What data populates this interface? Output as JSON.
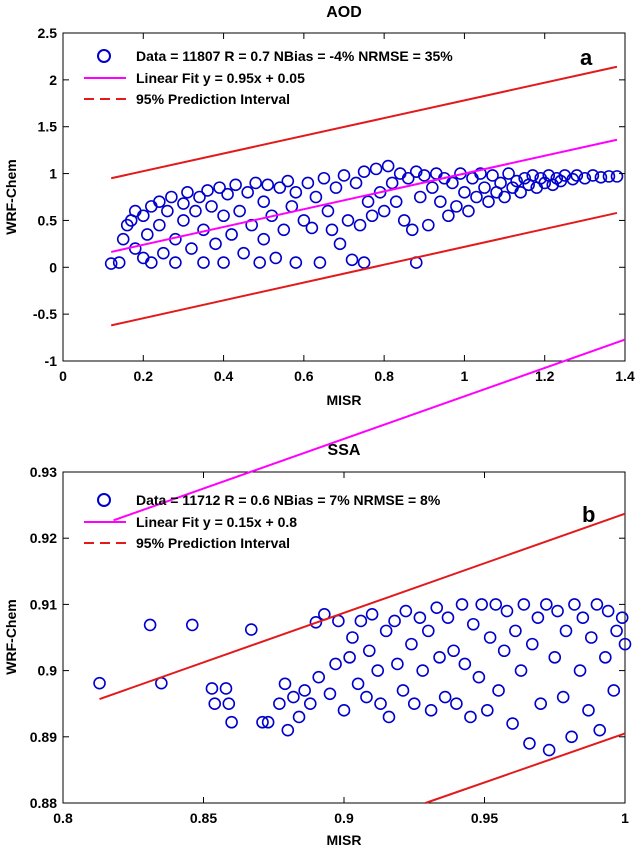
{
  "chart_data": [
    {
      "type": "scatter",
      "title": "AOD",
      "xlabel": "MISR",
      "ylabel": "WRF-Chem",
      "xlim": [
        0,
        1.4
      ],
      "ylim": [
        -1,
        2.5
      ],
      "xticks": [
        "0",
        "0.2",
        "0.4",
        "0.6",
        "0.8",
        "1",
        "1.2",
        "1.4"
      ],
      "yticks": [
        "-1",
        "-0.5",
        "0",
        "0.5",
        "1",
        "1.5",
        "2",
        "2.5"
      ],
      "panel_label": "a",
      "legend": {
        "placement": "top",
        "entries": [
          {
            "marker": "circle",
            "text": "Data = 11807   R = 0.7  NBias = -4%   NRMSE = 35%"
          },
          {
            "marker": "solid-line",
            "text": "Linear Fit    y = 0.95x + 0.05"
          },
          {
            "marker": "dashed-line",
            "text": "95% Prediction Interval"
          }
        ]
      },
      "fit": {
        "slope": 0.95,
        "intercept": 0.05,
        "x_range": [
          0.12,
          1.38
        ]
      },
      "prediction_interval": {
        "upper": [
          [
            0.12,
            0.95
          ],
          [
            1.38,
            2.14
          ]
        ],
        "lower": [
          [
            0.12,
            -0.62
          ],
          [
            1.38,
            0.58
          ]
        ]
      },
      "series": [
        {
          "name": "Data",
          "color": "#0000cc",
          "points": [
            [
              0.12,
              0.04
            ],
            [
              0.14,
              0.05
            ],
            [
              0.15,
              0.3
            ],
            [
              0.16,
              0.45
            ],
            [
              0.17,
              0.5
            ],
            [
              0.18,
              0.2
            ],
            [
              0.18,
              0.6
            ],
            [
              0.2,
              0.1
            ],
            [
              0.2,
              0.55
            ],
            [
              0.21,
              0.35
            ],
            [
              0.22,
              0.65
            ],
            [
              0.22,
              0.05
            ],
            [
              0.24,
              0.7
            ],
            [
              0.24,
              0.45
            ],
            [
              0.25,
              0.15
            ],
            [
              0.26,
              0.6
            ],
            [
              0.27,
              0.75
            ],
            [
              0.28,
              0.3
            ],
            [
              0.28,
              0.05
            ],
            [
              0.3,
              0.68
            ],
            [
              0.3,
              0.5
            ],
            [
              0.31,
              0.8
            ],
            [
              0.32,
              0.2
            ],
            [
              0.33,
              0.6
            ],
            [
              0.34,
              0.75
            ],
            [
              0.35,
              0.05
            ],
            [
              0.35,
              0.4
            ],
            [
              0.36,
              0.82
            ],
            [
              0.37,
              0.65
            ],
            [
              0.38,
              0.25
            ],
            [
              0.39,
              0.85
            ],
            [
              0.4,
              0.55
            ],
            [
              0.4,
              0.05
            ],
            [
              0.41,
              0.78
            ],
            [
              0.42,
              0.35
            ],
            [
              0.43,
              0.88
            ],
            [
              0.44,
              0.6
            ],
            [
              0.45,
              0.15
            ],
            [
              0.46,
              0.8
            ],
            [
              0.47,
              0.45
            ],
            [
              0.48,
              0.9
            ],
            [
              0.49,
              0.05
            ],
            [
              0.5,
              0.7
            ],
            [
              0.5,
              0.3
            ],
            [
              0.51,
              0.88
            ],
            [
              0.52,
              0.55
            ],
            [
              0.53,
              0.1
            ],
            [
              0.54,
              0.85
            ],
            [
              0.55,
              0.4
            ],
            [
              0.56,
              0.92
            ],
            [
              0.57,
              0.65
            ],
            [
              0.58,
              0.05
            ],
            [
              0.58,
              0.8
            ],
            [
              0.6,
              0.5
            ],
            [
              0.61,
              0.9
            ],
            [
              0.62,
              0.42
            ],
            [
              0.63,
              0.75
            ],
            [
              0.64,
              0.05
            ],
            [
              0.65,
              0.95
            ],
            [
              0.66,
              0.6
            ],
            [
              0.67,
              0.4
            ],
            [
              0.68,
              0.85
            ],
            [
              0.69,
              0.25
            ],
            [
              0.7,
              0.98
            ],
            [
              0.71,
              0.5
            ],
            [
              0.72,
              0.08
            ],
            [
              0.73,
              0.9
            ],
            [
              0.74,
              0.45
            ],
            [
              0.75,
              1.02
            ],
            [
              0.75,
              0.05
            ],
            [
              0.76,
              0.7
            ],
            [
              0.77,
              0.55
            ],
            [
              0.78,
              1.05
            ],
            [
              0.79,
              0.8
            ],
            [
              0.8,
              0.6
            ],
            [
              0.81,
              1.08
            ],
            [
              0.82,
              0.9
            ],
            [
              0.83,
              0.7
            ],
            [
              0.84,
              1.0
            ],
            [
              0.85,
              0.5
            ],
            [
              0.86,
              0.95
            ],
            [
              0.87,
              0.4
            ],
            [
              0.88,
              0.05
            ],
            [
              0.88,
              1.02
            ],
            [
              0.89,
              0.75
            ],
            [
              0.9,
              0.98
            ],
            [
              0.91,
              0.45
            ],
            [
              0.92,
              0.85
            ],
            [
              0.93,
              1.0
            ],
            [
              0.94,
              0.7
            ],
            [
              0.95,
              0.95
            ],
            [
              0.96,
              0.55
            ],
            [
              0.97,
              0.9
            ],
            [
              0.98,
              0.65
            ],
            [
              0.99,
              1.0
            ],
            [
              1.0,
              0.8
            ],
            [
              1.01,
              0.6
            ],
            [
              1.02,
              0.95
            ],
            [
              1.03,
              0.75
            ],
            [
              1.04,
              1.0
            ],
            [
              1.05,
              0.85
            ],
            [
              1.06,
              0.7
            ],
            [
              1.07,
              0.98
            ],
            [
              1.08,
              0.8
            ],
            [
              1.09,
              0.9
            ],
            [
              1.1,
              0.75
            ],
            [
              1.11,
              1.0
            ],
            [
              1.12,
              0.85
            ],
            [
              1.13,
              0.92
            ],
            [
              1.14,
              0.8
            ],
            [
              1.15,
              0.95
            ],
            [
              1.16,
              0.88
            ],
            [
              1.17,
              0.98
            ],
            [
              1.18,
              0.85
            ],
            [
              1.19,
              0.95
            ],
            [
              1.2,
              0.9
            ],
            [
              1.21,
              0.98
            ],
            [
              1.22,
              0.88
            ],
            [
              1.23,
              0.95
            ],
            [
              1.24,
              0.92
            ],
            [
              1.25,
              0.98
            ],
            [
              1.27,
              0.94
            ],
            [
              1.28,
              0.98
            ],
            [
              1.3,
              0.95
            ],
            [
              1.32,
              0.98
            ],
            [
              1.34,
              0.96
            ],
            [
              1.36,
              0.97
            ],
            [
              1.38,
              0.97
            ]
          ]
        }
      ]
    },
    {
      "type": "scatter",
      "title": "SSA",
      "xlabel": "MISR",
      "ylabel": "WRF-Chem",
      "xlim": [
        0.8,
        1.0
      ],
      "ylim": [
        0.88,
        0.93
      ],
      "xticks": [
        "0.8",
        "0.85",
        "0.9",
        "0.95",
        "1"
      ],
      "yticks": [
        "0.88",
        "0.89",
        "0.9",
        "0.91",
        "0.92",
        "0.93"
      ],
      "panel_label": "b",
      "legend": {
        "placement": "top",
        "entries": [
          {
            "marker": "circle",
            "text": "Data = 11712   R = 0.6   NBias = 7%   NRMSE = 8%"
          },
          {
            "marker": "solid-line",
            "text": "Linear Fit    y = 0.15x + 0.8"
          },
          {
            "marker": "dashed-line",
            "text": "95% Prediction Interval"
          }
        ]
      },
      "fit": {
        "slope": 0.15,
        "intercept": 0.8,
        "x_range": [
          0.818,
          1.0
        ]
      },
      "prediction_interval": {
        "upper": [
          [
            0.813,
            0.8957
          ],
          [
            1.0,
            0.9237
          ]
        ],
        "lower": [
          [
            0.929,
            0.88
          ],
          [
            1.0,
            0.8905
          ]
        ]
      },
      "series": [
        {
          "name": "Data",
          "color": "#0000cc",
          "points": [
            [
              0.813,
              0.8981
            ],
            [
              0.831,
              0.9069
            ],
            [
              0.835,
              0.8981
            ],
            [
              0.846,
              0.9069
            ],
            [
              0.853,
              0.8973
            ],
            [
              0.854,
              0.895
            ],
            [
              0.858,
              0.8973
            ],
            [
              0.859,
              0.895
            ],
            [
              0.86,
              0.8922
            ],
            [
              0.867,
              0.9062
            ],
            [
              0.871,
              0.8922
            ],
            [
              0.873,
              0.8922
            ],
            [
              0.877,
              0.895
            ],
            [
              0.879,
              0.898
            ],
            [
              0.88,
              0.891
            ],
            [
              0.882,
              0.896
            ],
            [
              0.884,
              0.893
            ],
            [
              0.886,
              0.897
            ],
            [
              0.888,
              0.895
            ],
            [
              0.89,
              0.9073
            ],
            [
              0.891,
              0.899
            ],
            [
              0.893,
              0.9085
            ],
            [
              0.895,
              0.8965
            ],
            [
              0.897,
              0.901
            ],
            [
              0.898,
              0.9075
            ],
            [
              0.9,
              0.894
            ],
            [
              0.902,
              0.902
            ],
            [
              0.903,
              0.905
            ],
            [
              0.905,
              0.898
            ],
            [
              0.906,
              0.9075
            ],
            [
              0.908,
              0.896
            ],
            [
              0.909,
              0.903
            ],
            [
              0.91,
              0.9085
            ],
            [
              0.912,
              0.9
            ],
            [
              0.913,
              0.895
            ],
            [
              0.915,
              0.906
            ],
            [
              0.916,
              0.893
            ],
            [
              0.918,
              0.9075
            ],
            [
              0.919,
              0.901
            ],
            [
              0.921,
              0.897
            ],
            [
              0.922,
              0.909
            ],
            [
              0.924,
              0.904
            ],
            [
              0.925,
              0.895
            ],
            [
              0.927,
              0.908
            ],
            [
              0.928,
              0.9
            ],
            [
              0.93,
              0.906
            ],
            [
              0.931,
              0.894
            ],
            [
              0.933,
              0.9095
            ],
            [
              0.934,
              0.902
            ],
            [
              0.936,
              0.896
            ],
            [
              0.937,
              0.908
            ],
            [
              0.939,
              0.903
            ],
            [
              0.94,
              0.895
            ],
            [
              0.942,
              0.91
            ],
            [
              0.943,
              0.901
            ],
            [
              0.945,
              0.893
            ],
            [
              0.946,
              0.907
            ],
            [
              0.948,
              0.899
            ],
            [
              0.949,
              0.91
            ],
            [
              0.951,
              0.894
            ],
            [
              0.952,
              0.905
            ],
            [
              0.954,
              0.91
            ],
            [
              0.955,
              0.897
            ],
            [
              0.957,
              0.903
            ],
            [
              0.958,
              0.909
            ],
            [
              0.96,
              0.892
            ],
            [
              0.961,
              0.906
            ],
            [
              0.963,
              0.9
            ],
            [
              0.964,
              0.91
            ],
            [
              0.966,
              0.889
            ],
            [
              0.967,
              0.904
            ],
            [
              0.969,
              0.908
            ],
            [
              0.97,
              0.895
            ],
            [
              0.972,
              0.91
            ],
            [
              0.973,
              0.888
            ],
            [
              0.975,
              0.902
            ],
            [
              0.976,
              0.909
            ],
            [
              0.978,
              0.896
            ],
            [
              0.979,
              0.906
            ],
            [
              0.981,
              0.89
            ],
            [
              0.982,
              0.91
            ],
            [
              0.984,
              0.9
            ],
            [
              0.985,
              0.908
            ],
            [
              0.987,
              0.894
            ],
            [
              0.988,
              0.905
            ],
            [
              0.99,
              0.91
            ],
            [
              0.991,
              0.891
            ],
            [
              0.993,
              0.902
            ],
            [
              0.994,
              0.909
            ],
            [
              0.996,
              0.897
            ],
            [
              0.997,
              0.906
            ],
            [
              0.999,
              0.908
            ],
            [
              1.0,
              0.904
            ]
          ]
        }
      ]
    }
  ]
}
